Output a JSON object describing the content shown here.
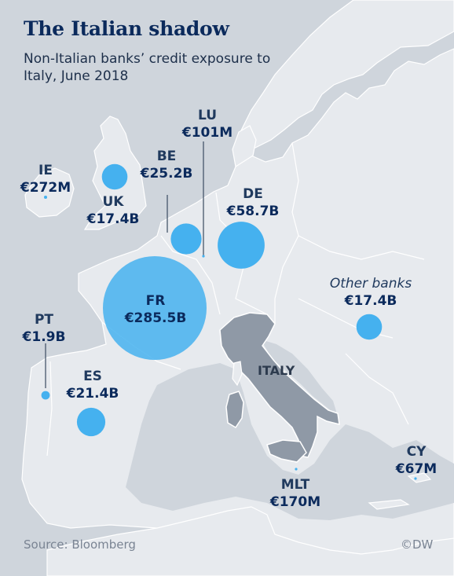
{
  "title": "The Italian shadow",
  "subtitle": "Non-Italian banks’ credit exposure to Italy, June 2018",
  "highlight_label": "ITALY",
  "source": "Source: Bloomberg",
  "credit": "©DW",
  "colors": {
    "sea": "#cfd5dc",
    "land": "#e7eaee",
    "italy": "#8f99a6",
    "bubble": "#45b1ef",
    "text": "#0b2a5c"
  },
  "exposures": [
    {
      "code": "FR",
      "value": "€285.5B",
      "value_eur_bn": 285.5
    },
    {
      "code": "IE",
      "value": "€272M",
      "value_eur_bn": 0.272
    },
    {
      "code": "DE",
      "value": "€58.7B",
      "value_eur_bn": 58.7
    },
    {
      "code": "BE",
      "value": "€25.2B",
      "value_eur_bn": 25.2
    },
    {
      "code": "ES",
      "value": "€21.4B",
      "value_eur_bn": 21.4
    },
    {
      "code": "UK",
      "value": "€17.4B",
      "value_eur_bn": 17.4
    },
    {
      "code": "Other banks",
      "value": "€17.4B",
      "value_eur_bn": 17.4
    },
    {
      "code": "PT",
      "value": "€1.9B",
      "value_eur_bn": 1.9
    },
    {
      "code": "MLT",
      "value": "€170M",
      "value_eur_bn": 0.17
    },
    {
      "code": "LU",
      "value": "€101M",
      "value_eur_bn": 0.101
    },
    {
      "code": "CY",
      "value": "€67M",
      "value_eur_bn": 0.067
    }
  ]
}
